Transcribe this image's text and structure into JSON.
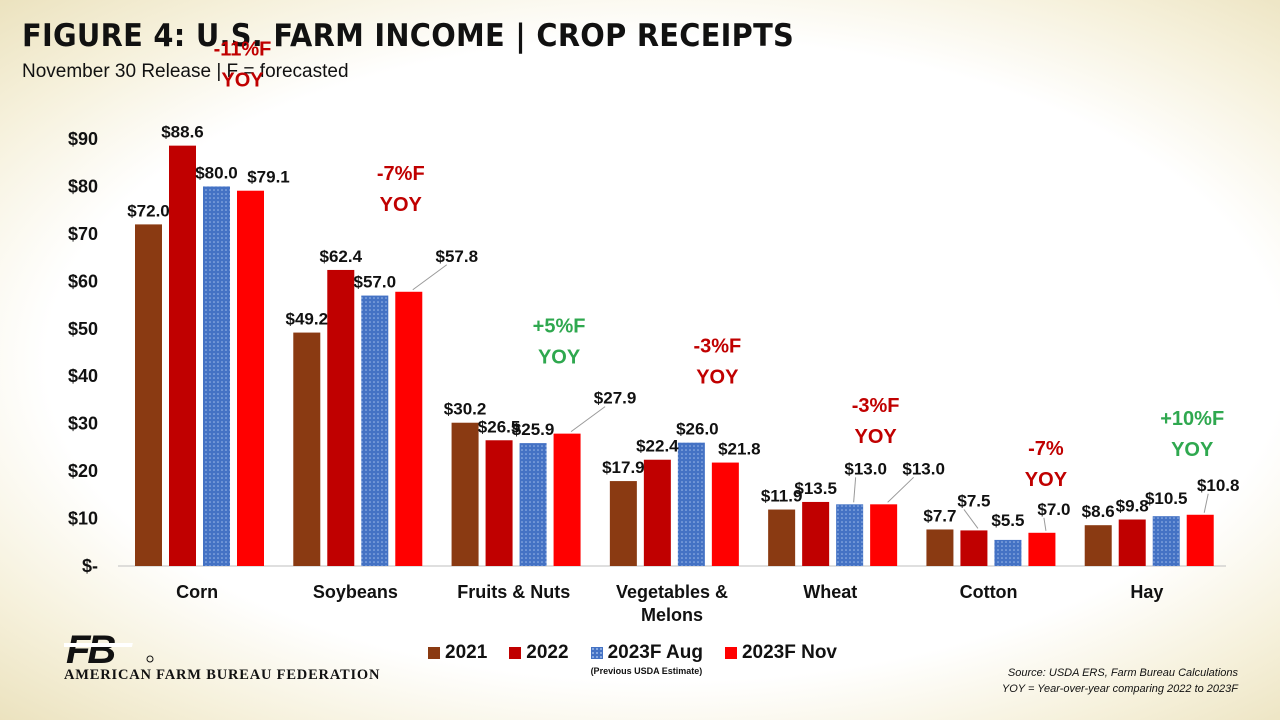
{
  "title": "FIGURE 4: U.S. FARM INCOME | CROP RECEIPTS",
  "subtitle": "November 30 Release | F = forecasted",
  "colors": {
    "s2021": "#8a3a12",
    "s2022": "#c00000",
    "s2023aug": "#4472c4",
    "s2023nov": "#ff0000",
    "yoy_neg": "#c00000",
    "yoy_pos": "#2fa84f"
  },
  "chart_data": {
    "type": "bar",
    "categories": [
      "Corn",
      "Soybeans",
      "Fruits & Nuts",
      "Vegetables & Melons",
      "Wheat",
      "Cotton",
      "Hay"
    ],
    "series": [
      {
        "name": "2021",
        "values": [
          72.0,
          49.2,
          30.2,
          17.9,
          11.9,
          7.7,
          8.6
        ]
      },
      {
        "name": "2022",
        "values": [
          88.6,
          62.4,
          26.5,
          22.4,
          13.5,
          7.5,
          9.8
        ]
      },
      {
        "name": "2023F Aug",
        "values": [
          80.0,
          57.0,
          25.9,
          26.0,
          13.0,
          5.5,
          10.5
        ]
      },
      {
        "name": "2023F Nov",
        "values": [
          79.1,
          57.8,
          27.9,
          21.8,
          13.0,
          7.0,
          10.8
        ]
      }
    ],
    "data_labels": [
      [
        "$72.0",
        "$88.6",
        "$80.0",
        "$79.1"
      ],
      [
        "$49.2",
        "$62.4",
        "$57.0",
        "$57.8"
      ],
      [
        "$30.2",
        "$26.5",
        "$25.9",
        "$27.9"
      ],
      [
        "$17.9",
        "$22.4",
        "$26.0",
        "$21.8"
      ],
      [
        "$11.9",
        "$13.5",
        "$13.0",
        "$13.0"
      ],
      [
        "$7.7",
        "$7.5",
        "$5.5",
        "$7.0"
      ],
      [
        "$8.6",
        "$9.8",
        "$10.5",
        "$10.8"
      ]
    ],
    "yoy": [
      {
        "line1": "-11%F",
        "line2": "YOY",
        "sign": "neg"
      },
      {
        "line1": "-7%F",
        "line2": "YOY",
        "sign": "neg"
      },
      {
        "line1": "+5%F",
        "line2": "YOY",
        "sign": "pos"
      },
      {
        "line1": "-3%F",
        "line2": "YOY",
        "sign": "neg"
      },
      {
        "line1": "-3%F",
        "line2": "YOY",
        "sign": "neg"
      },
      {
        "line1": "-7%",
        "line2": "YOY",
        "sign": "neg"
      },
      {
        "line1": "+10%F",
        "line2": "YOY",
        "sign": "pos"
      }
    ],
    "ylim": [
      0,
      90
    ],
    "yticks": [
      0,
      10,
      20,
      30,
      40,
      50,
      60,
      70,
      80,
      90
    ],
    "ytick_labels": [
      "$-",
      "$10",
      "$20",
      "$30",
      "$40",
      "$50",
      "$60",
      "$70",
      "$80",
      "$90"
    ],
    "grid": false,
    "legend_position": "bottom"
  },
  "legend": {
    "items": [
      "2021",
      "2022",
      "2023F Aug",
      "2023F Nov"
    ],
    "note": "(Previous USDA Estimate)"
  },
  "footer": {
    "org_name": "AMERICAN FARM BUREAU FEDERATION",
    "logo_mark": "FB",
    "source_line1": "Source: USDA ERS, Farm Bureau Calculations",
    "source_line2": "YOY = Year-over-year comparing 2022 to 2023F"
  }
}
